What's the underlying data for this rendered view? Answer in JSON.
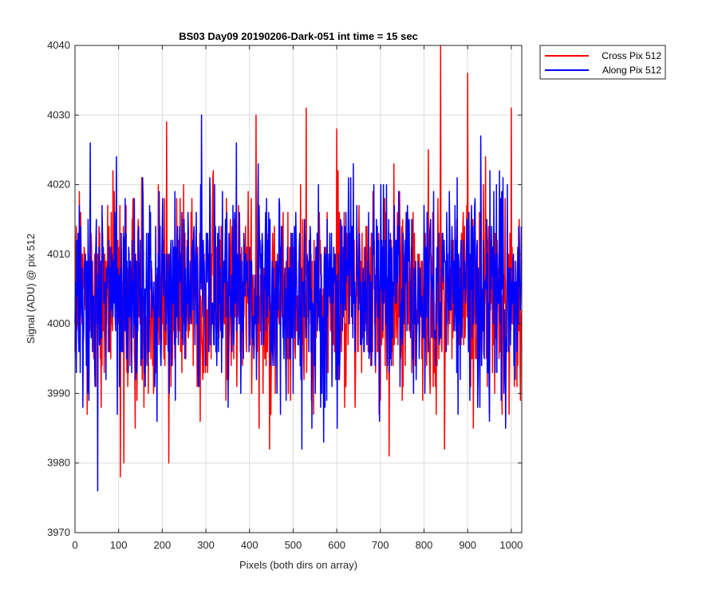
{
  "chart_data": {
    "type": "line",
    "title": "BS03 Day09 20190206-Dark-051 int time = 15 sec",
    "xlabel": "Pixels (both dirs on array)",
    "ylabel": "Signal (ADU) @ pix 512",
    "xlim": [
      0,
      1024
    ],
    "ylim": [
      3970,
      4040
    ],
    "xticks": [
      0,
      100,
      200,
      300,
      400,
      500,
      600,
      700,
      800,
      900,
      1000
    ],
    "yticks": [
      3970,
      3980,
      3990,
      4000,
      4010,
      4020,
      4030,
      4040
    ],
    "xtick_labels": [
      "0",
      "100",
      "200",
      "300",
      "400",
      "500",
      "600",
      "700",
      "800",
      "900",
      "1000"
    ],
    "ytick_labels": [
      "3970",
      "3980",
      "3990",
      "4000",
      "4010",
      "4020",
      "4030",
      "4040"
    ],
    "grid": true,
    "legend_position": "outside-top-right",
    "series": [
      {
        "name": "Cross Pix 512",
        "color": "#ff0000",
        "n_points": 1024,
        "mean": 4004,
        "min": 3978,
        "max": 4040,
        "notable_points": [
          [
            10,
            4019
          ],
          [
            60,
            3988
          ],
          [
            104,
            3978
          ],
          [
            112,
            3980
          ],
          [
            210,
            4029
          ],
          [
            215,
            3980
          ],
          [
            415,
            4030
          ],
          [
            530,
            4031
          ],
          [
            600,
            4028
          ],
          [
            720,
            3981
          ],
          [
            838,
            4040
          ],
          [
            900,
            4036
          ],
          [
            1000,
            4031
          ]
        ]
      },
      {
        "name": "Along Pix 512",
        "color": "#0000ff",
        "n_points": 1024,
        "mean": 4005,
        "min": 3976,
        "max": 4030,
        "notable_points": [
          [
            35,
            4026
          ],
          [
            52,
            3976
          ],
          [
            95,
            4024
          ],
          [
            290,
            4030
          ],
          [
            370,
            4026
          ],
          [
            520,
            3982
          ],
          [
            570,
            3983
          ],
          [
            950,
            3986
          ]
        ]
      }
    ]
  }
}
